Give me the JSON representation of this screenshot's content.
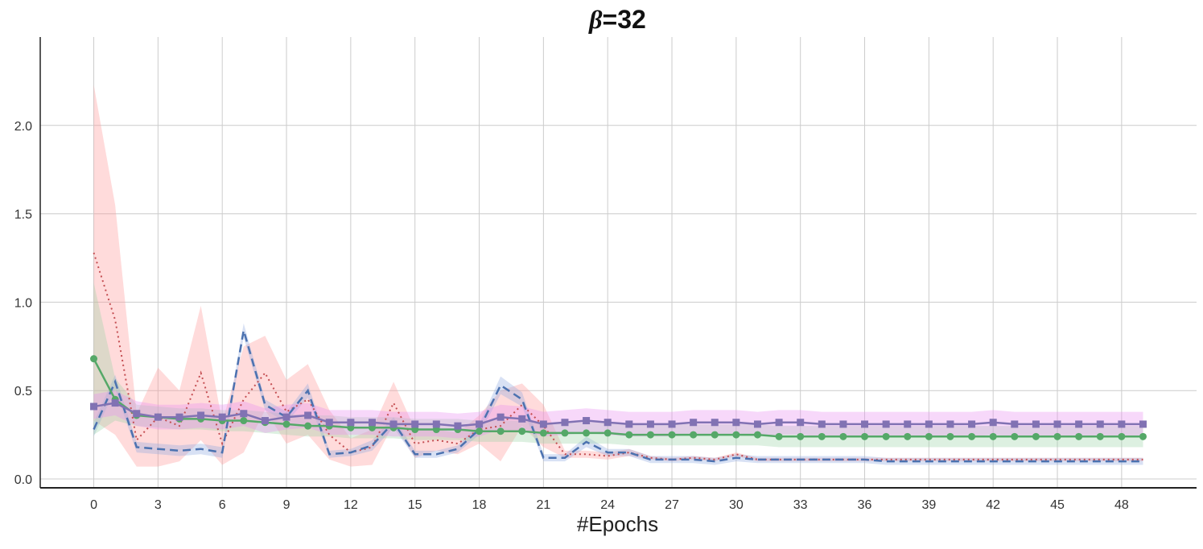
{
  "chart_data": {
    "type": "line",
    "title_symbol": "β",
    "title_value": "=32",
    "xlabel": "#Epochs",
    "ylabel": "",
    "xlim": [
      -2.5,
      51.5
    ],
    "ylim": [
      -0.05,
      2.5
    ],
    "x_ticks": [
      0,
      3,
      6,
      9,
      12,
      15,
      18,
      21,
      24,
      27,
      30,
      33,
      36,
      39,
      42,
      45,
      48
    ],
    "y_ticks": [
      0.0,
      0.5,
      1.0,
      1.5,
      2.0
    ],
    "y_tick_labels": [
      "0.0",
      "0.5",
      "1.0",
      "1.5",
      "2.0"
    ],
    "grid": true,
    "legend": "none",
    "x": [
      0,
      1,
      2,
      3,
      4,
      5,
      6,
      7,
      8,
      9,
      10,
      11,
      12,
      13,
      14,
      15,
      16,
      17,
      18,
      19,
      20,
      21,
      22,
      23,
      24,
      25,
      26,
      27,
      28,
      29,
      30,
      31,
      32,
      33,
      34,
      35,
      36,
      37,
      38,
      39,
      40,
      41,
      42,
      43,
      44,
      45,
      46,
      47,
      48,
      49
    ],
    "series": [
      {
        "color": "#c44e52",
        "band_color": "#ff9999",
        "style": "dotted",
        "marker": "none",
        "values": [
          1.28,
          0.9,
          0.22,
          0.35,
          0.3,
          0.6,
          0.2,
          0.45,
          0.6,
          0.38,
          0.45,
          0.25,
          0.15,
          0.18,
          0.43,
          0.2,
          0.22,
          0.2,
          0.28,
          0.3,
          0.42,
          0.3,
          0.14,
          0.14,
          0.13,
          0.15,
          0.12,
          0.11,
          0.12,
          0.11,
          0.14,
          0.11,
          0.11,
          0.11,
          0.11,
          0.11,
          0.11,
          0.11,
          0.11,
          0.11,
          0.11,
          0.11,
          0.11,
          0.11,
          0.11,
          0.11,
          0.11,
          0.11,
          0.11,
          0.11
        ],
        "band": [
          0.95,
          0.65,
          0.15,
          0.28,
          0.2,
          0.38,
          0.12,
          0.3,
          0.21,
          0.18,
          0.2,
          0.14,
          0.08,
          0.1,
          0.12,
          0.08,
          0.06,
          0.06,
          0.08,
          0.2,
          0.12,
          0.12,
          0.02,
          0.02,
          0.02,
          0.02,
          0.01,
          0.01,
          0.01,
          0.01,
          0.01,
          0.01,
          0.01,
          0.01,
          0.01,
          0.01,
          0.01,
          0.01,
          0.01,
          0.01,
          0.01,
          0.01,
          0.01,
          0.01,
          0.01,
          0.01,
          0.01,
          0.01,
          0.01,
          0.01
        ]
      },
      {
        "color": "#4c72b0",
        "band_color": "#8fa8e0",
        "style": "dashed",
        "marker": "none",
        "values": [
          0.28,
          0.55,
          0.18,
          0.17,
          0.16,
          0.17,
          0.15,
          0.84,
          0.42,
          0.35,
          0.5,
          0.14,
          0.15,
          0.19,
          0.32,
          0.14,
          0.14,
          0.17,
          0.28,
          0.53,
          0.45,
          0.12,
          0.12,
          0.21,
          0.15,
          0.15,
          0.11,
          0.11,
          0.11,
          0.1,
          0.12,
          0.11,
          0.11,
          0.11,
          0.11,
          0.11,
          0.11,
          0.1,
          0.1,
          0.1,
          0.1,
          0.1,
          0.1,
          0.1,
          0.1,
          0.1,
          0.1,
          0.1,
          0.1,
          0.1
        ],
        "band": [
          0.04,
          0.04,
          0.03,
          0.03,
          0.03,
          0.03,
          0.03,
          0.04,
          0.03,
          0.03,
          0.04,
          0.02,
          0.02,
          0.03,
          0.03,
          0.02,
          0.02,
          0.02,
          0.03,
          0.05,
          0.04,
          0.02,
          0.02,
          0.03,
          0.02,
          0.02,
          0.02,
          0.02,
          0.02,
          0.02,
          0.02,
          0.02,
          0.02,
          0.02,
          0.02,
          0.02,
          0.02,
          0.02,
          0.02,
          0.02,
          0.02,
          0.02,
          0.02,
          0.02,
          0.02,
          0.02,
          0.02,
          0.02,
          0.02,
          0.02
        ]
      },
      {
        "color": "#55a868",
        "band_color": "#9fd3a8",
        "style": "solid",
        "marker": "circle",
        "values": [
          0.68,
          0.45,
          0.36,
          0.35,
          0.34,
          0.34,
          0.33,
          0.33,
          0.32,
          0.31,
          0.3,
          0.3,
          0.29,
          0.29,
          0.29,
          0.28,
          0.28,
          0.28,
          0.27,
          0.27,
          0.27,
          0.26,
          0.26,
          0.26,
          0.26,
          0.25,
          0.25,
          0.25,
          0.25,
          0.25,
          0.25,
          0.25,
          0.24,
          0.24,
          0.24,
          0.24,
          0.24,
          0.24,
          0.24,
          0.24,
          0.24,
          0.24,
          0.24,
          0.24,
          0.24,
          0.24,
          0.24,
          0.24,
          0.24,
          0.24
        ],
        "band": [
          0.43,
          0.12,
          0.06,
          0.06,
          0.06,
          0.06,
          0.06,
          0.06,
          0.06,
          0.06,
          0.06,
          0.06,
          0.06,
          0.06,
          0.06,
          0.06,
          0.06,
          0.06,
          0.06,
          0.06,
          0.06,
          0.06,
          0.06,
          0.06,
          0.06,
          0.06,
          0.06,
          0.06,
          0.06,
          0.06,
          0.06,
          0.06,
          0.06,
          0.06,
          0.06,
          0.06,
          0.06,
          0.06,
          0.06,
          0.06,
          0.06,
          0.06,
          0.06,
          0.06,
          0.06,
          0.06,
          0.06,
          0.06,
          0.06,
          0.06
        ]
      },
      {
        "color": "#8172b3",
        "band_color": "#e98ff0",
        "style": "solid",
        "marker": "square",
        "values": [
          0.41,
          0.43,
          0.37,
          0.35,
          0.35,
          0.36,
          0.35,
          0.37,
          0.33,
          0.35,
          0.36,
          0.32,
          0.32,
          0.32,
          0.31,
          0.31,
          0.31,
          0.3,
          0.31,
          0.35,
          0.34,
          0.31,
          0.32,
          0.33,
          0.32,
          0.31,
          0.31,
          0.31,
          0.32,
          0.32,
          0.32,
          0.31,
          0.32,
          0.32,
          0.31,
          0.31,
          0.31,
          0.31,
          0.31,
          0.31,
          0.31,
          0.31,
          0.32,
          0.31,
          0.31,
          0.31,
          0.31,
          0.31,
          0.31,
          0.31
        ],
        "band": [
          0.07,
          0.07,
          0.07,
          0.07,
          0.07,
          0.07,
          0.07,
          0.07,
          0.07,
          0.07,
          0.07,
          0.07,
          0.07,
          0.07,
          0.07,
          0.07,
          0.07,
          0.07,
          0.07,
          0.07,
          0.07,
          0.07,
          0.07,
          0.07,
          0.07,
          0.07,
          0.07,
          0.07,
          0.07,
          0.07,
          0.07,
          0.07,
          0.07,
          0.07,
          0.07,
          0.07,
          0.07,
          0.07,
          0.07,
          0.07,
          0.07,
          0.07,
          0.07,
          0.07,
          0.07,
          0.07,
          0.07,
          0.07,
          0.07,
          0.07
        ]
      }
    ]
  }
}
